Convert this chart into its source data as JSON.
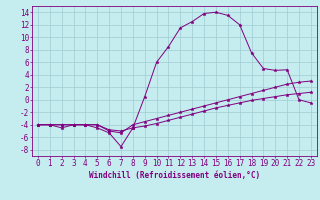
{
  "background_color": "#c5ecee",
  "grid_color": "#9fcdd4",
  "line_color": "#800080",
  "xlabel": "Windchill (Refroidissement éolien,°C)",
  "xlabel_fontsize": 5.5,
  "tick_fontsize": 5.5,
  "xlim": [
    -0.5,
    23.5
  ],
  "ylim": [
    -9,
    15
  ],
  "yticks": [
    -8,
    -6,
    -4,
    -2,
    0,
    2,
    4,
    6,
    8,
    10,
    12,
    14
  ],
  "xticks": [
    0,
    1,
    2,
    3,
    4,
    5,
    6,
    7,
    8,
    9,
    10,
    11,
    12,
    13,
    14,
    15,
    16,
    17,
    18,
    19,
    20,
    21,
    22,
    23
  ],
  "curve1_x": [
    0,
    1,
    2,
    3,
    4,
    5,
    6,
    7,
    8,
    9,
    10,
    11,
    12,
    13,
    14,
    15,
    16,
    17,
    18,
    19,
    20,
    21,
    22,
    23
  ],
  "curve1_y": [
    -4,
    -4,
    -4.5,
    -4,
    -4,
    -4.5,
    -5.3,
    -7.5,
    -4.5,
    0.5,
    6,
    8.5,
    11.5,
    12.5,
    13.8,
    14,
    13.5,
    12,
    7.5,
    5,
    4.7,
    4.8,
    0,
    -0.5
  ],
  "curve2_x": [
    0,
    1,
    2,
    3,
    4,
    5,
    6,
    7,
    8,
    9,
    10,
    11,
    12,
    13,
    14,
    15,
    16,
    17,
    18,
    19,
    20,
    21,
    22,
    23
  ],
  "curve2_y": [
    -4,
    -4,
    -4,
    -4,
    -4,
    -4,
    -5,
    -5.3,
    -4,
    -3.5,
    -3,
    -2.5,
    -2,
    -1.5,
    -1,
    -0.5,
    0,
    0.5,
    1.0,
    1.5,
    2.0,
    2.5,
    2.8,
    3.0
  ],
  "curve3_x": [
    0,
    1,
    2,
    3,
    4,
    5,
    6,
    7,
    8,
    9,
    10,
    11,
    12,
    13,
    14,
    15,
    16,
    17,
    18,
    19,
    20,
    21,
    22,
    23
  ],
  "curve3_y": [
    -4,
    -4,
    -4,
    -4,
    -4,
    -4,
    -4.8,
    -5,
    -4.5,
    -4.2,
    -3.8,
    -3.3,
    -2.8,
    -2.3,
    -1.8,
    -1.3,
    -0.9,
    -0.5,
    -0.1,
    0.2,
    0.5,
    0.8,
    1.0,
    1.2
  ]
}
